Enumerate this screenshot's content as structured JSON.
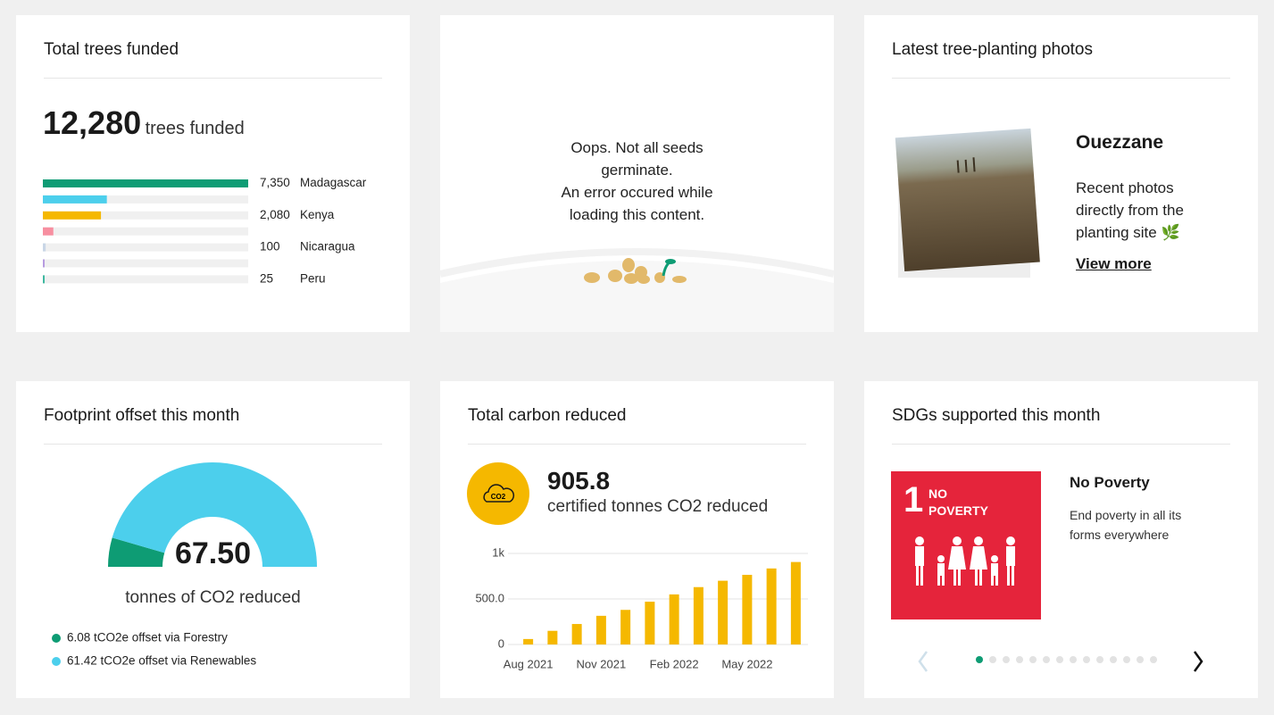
{
  "cards": {
    "trees": {
      "title": "Total trees funded",
      "total": 12280,
      "total_label": "12,280",
      "unit": "trees funded",
      "categories": [
        "Madagascar",
        null,
        "Kenya",
        null,
        "Nicaragua",
        null,
        "Peru"
      ],
      "values": [
        7350,
        2290,
        2080,
        375,
        100,
        60,
        25
      ],
      "value_labels": [
        "7,350",
        null,
        "2,080",
        null,
        "100",
        null,
        "25"
      ],
      "colors": [
        "#0e9c74",
        "#4ccfec",
        "#f5b800",
        "#f78fa0",
        "#c9d6e6",
        "#b79ce0",
        "#3fb8a0"
      ]
    },
    "error": {
      "lines": [
        "Oops. Not all seeds",
        "germinate.",
        "An error occured while",
        "loading this content."
      ]
    },
    "photos": {
      "title": "Latest tree-planting photos",
      "place": "Ouezzane",
      "text": "Recent photos directly from the planting site 🌿",
      "link": "View more"
    },
    "footprint": {
      "title": "Footprint offset this month",
      "total": 67.5,
      "total_label": "67.50",
      "unit": "tonnes of CO2 reduced",
      "series": [
        {
          "name": "6.08 tCO2e offset via Forestry",
          "value": 6.08,
          "color": "#0e9c74"
        },
        {
          "name": "61.42 tCO2e offset via Renewables",
          "value": 61.42,
          "color": "#4ccfec"
        }
      ]
    },
    "carbon": {
      "title": "Total carbon reduced",
      "icon": "CO2",
      "total": 905.8,
      "unit": "certified tonnes CO2 reduced"
    },
    "sdg": {
      "title": "SDGs supported this month",
      "number": "1",
      "tile_label": "NO POVERTY",
      "name": "No Poverty",
      "description": "End poverty in all its forms everywhere"
    }
  },
  "chart_data": {
    "type": "bar",
    "color": "#f5b800",
    "categories": [
      "Aug 2021",
      null,
      null,
      "Nov 2021",
      null,
      null,
      "Feb 2022",
      null,
      null,
      "May 2022",
      null,
      null
    ],
    "values": [
      60,
      150,
      225,
      315,
      380,
      470,
      550,
      630,
      700,
      765,
      835,
      905.8
    ],
    "ylim": [
      0,
      1000
    ],
    "yticks": [
      0,
      {
        "value": 500,
        "label": "500.0"
      },
      {
        "value": 1000,
        "label": "1k"
      }
    ],
    "grid": true
  }
}
